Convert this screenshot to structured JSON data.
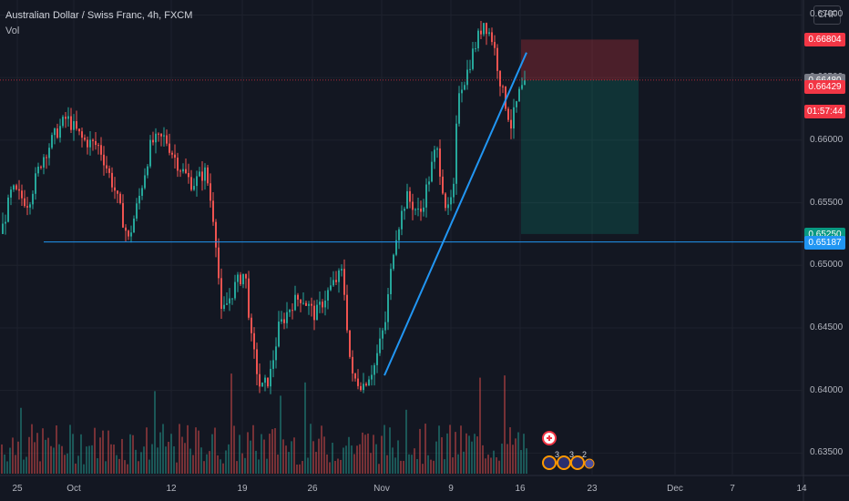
{
  "header": {
    "title": "Australian Dollar / Swiss Franc, 4h, FXCM",
    "indicator": "Vol",
    "currency_button": "CHF"
  },
  "colors": {
    "bull": "#26a69a",
    "bear": "#ef5350",
    "grid": "#1e222d",
    "trendline": "#2196f3",
    "support": "#2196f3",
    "stop_zone": "rgba(242,54,69,0.25)",
    "target_zone": "rgba(8,153,129,0.22)"
  },
  "chart_data": {
    "type": "candlestick",
    "symbol": "AUDCHF",
    "timeframe": "4h",
    "ylim": [
      0.63335,
      0.6712
    ],
    "y_ticks": [
      "0.67000",
      "0.66500",
      "0.66000",
      "0.65500",
      "0.65000",
      "0.64500",
      "0.64000",
      "0.63500"
    ],
    "x_ticks": [
      "25",
      "Oct",
      "12",
      "19",
      "26",
      "Nov",
      "9",
      "16",
      "23",
      "Dec",
      "7",
      "14"
    ],
    "price_path": [
      [
        0,
        0.6525
      ],
      [
        12,
        0.656
      ],
      [
        30,
        0.655
      ],
      [
        45,
        0.6585
      ],
      [
        60,
        0.6605
      ],
      [
        72,
        0.6618
      ],
      [
        90,
        0.66
      ],
      [
        108,
        0.6595
      ],
      [
        125,
        0.656
      ],
      [
        140,
        0.652
      ],
      [
        152,
        0.6555
      ],
      [
        165,
        0.6598
      ],
      [
        180,
        0.6602
      ],
      [
        195,
        0.658
      ],
      [
        210,
        0.6565
      ],
      [
        225,
        0.6575
      ],
      [
        235,
        0.653
      ],
      [
        242,
        0.646
      ],
      [
        258,
        0.6485
      ],
      [
        268,
        0.6495
      ],
      [
        275,
        0.644
      ],
      [
        285,
        0.64
      ],
      [
        295,
        0.641
      ],
      [
        305,
        0.645
      ],
      [
        320,
        0.647
      ],
      [
        330,
        0.6475
      ],
      [
        345,
        0.646
      ],
      [
        360,
        0.648
      ],
      [
        375,
        0.6495
      ],
      [
        385,
        0.641
      ],
      [
        398,
        0.6405
      ],
      [
        410,
        0.642
      ],
      [
        422,
        0.6455
      ],
      [
        432,
        0.652
      ],
      [
        445,
        0.6555
      ],
      [
        460,
        0.654
      ],
      [
        470,
        0.657
      ],
      [
        478,
        0.6595
      ],
      [
        490,
        0.654
      ],
      [
        497,
        0.656
      ],
      [
        502,
        0.664
      ],
      [
        510,
        0.665
      ],
      [
        518,
        0.667
      ],
      [
        530,
        0.6695
      ],
      [
        540,
        0.668
      ],
      [
        550,
        0.664
      ],
      [
        560,
        0.6612
      ],
      [
        570,
        0.664
      ],
      [
        577,
        0.6643
      ]
    ],
    "volume_range": [
      0,
      1
    ],
    "volume_panel_note": "",
    "price_labels": [
      {
        "text": "0.66804",
        "value": 0.66804,
        "color": "#f23645"
      },
      {
        "text": "0.66480",
        "value": 0.6648,
        "color": "#787b86"
      },
      {
        "text": "0.66429",
        "value": 0.66429,
        "color": "#f23645"
      },
      {
        "text": "01:57:44",
        "value": 0.66235,
        "color": "#f23645"
      },
      {
        "text": "0.65250",
        "value": 0.6525,
        "color": "#089981"
      },
      {
        "text": "0.65187",
        "value": 0.65187,
        "color": "#2196f3"
      }
    ],
    "drawings": {
      "support_line": {
        "value": 0.65187
      },
      "trendline": {
        "from": [
          422,
          0.6412
        ],
        "to": [
          578,
          0.667
        ]
      },
      "short_position": {
        "entry": 0.6648,
        "stop": 0.66804,
        "target": 0.6525,
        "x_from": 572,
        "x_to": 701
      }
    },
    "event_markers": [
      {
        "label": "",
        "kind": "swiss-flag"
      },
      {
        "label": "3"
      },
      {
        "label": "3"
      },
      {
        "label": "2"
      }
    ],
    "grid": true
  }
}
